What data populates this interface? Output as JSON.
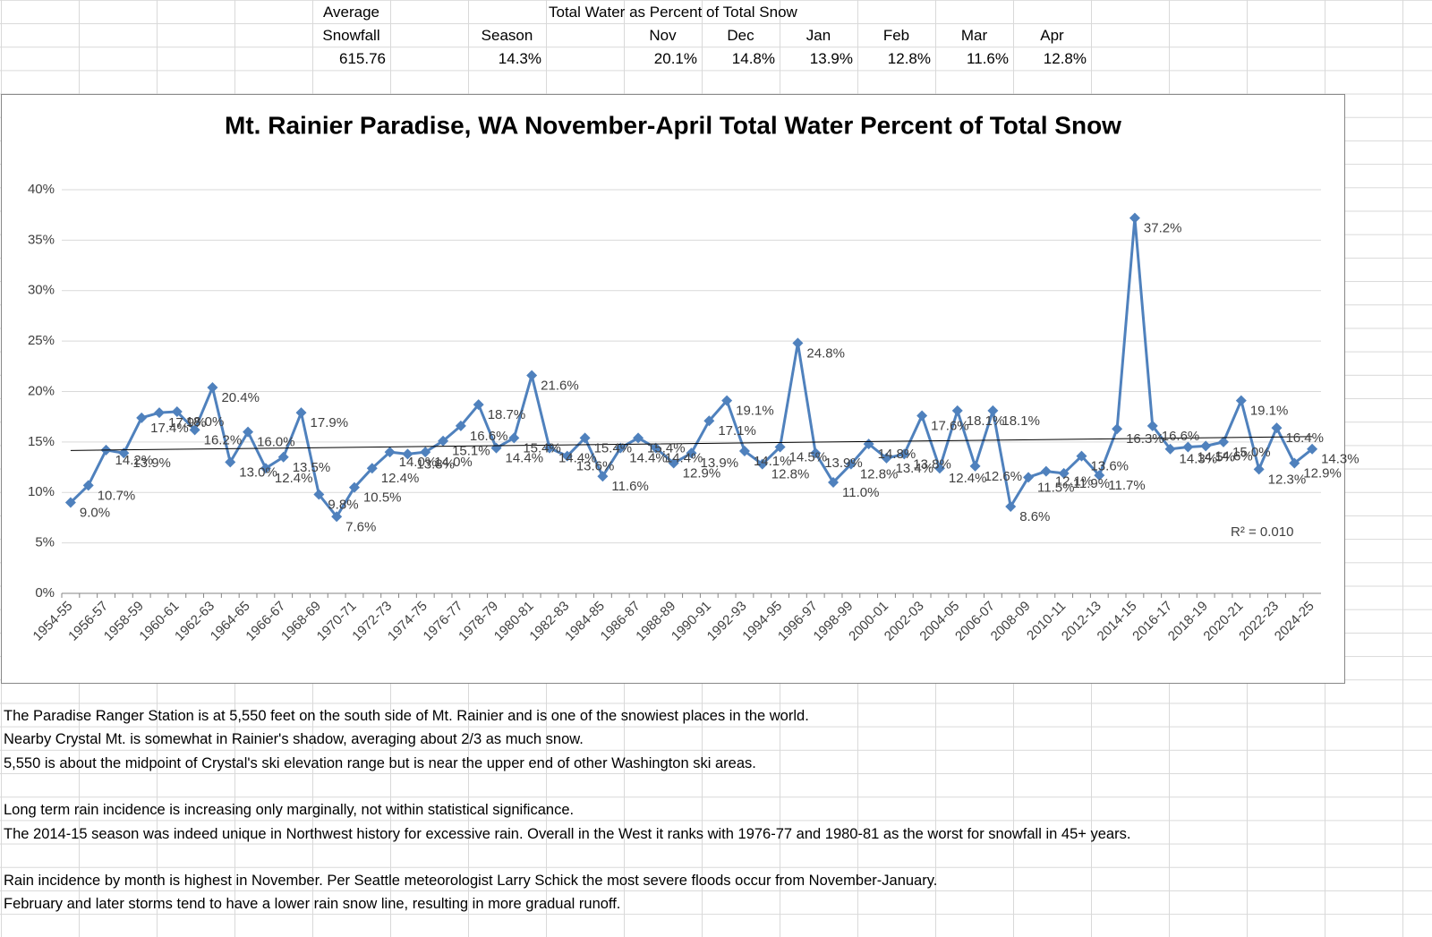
{
  "summary": {
    "average_label": "Average",
    "snowfall_label": "Snowfall",
    "average_snowfall": "615.76",
    "caption": "Total Water as Percent of Total Snow",
    "columns": [
      "Season",
      "Nov",
      "Dec",
      "Jan",
      "Feb",
      "Mar",
      "Apr"
    ],
    "values": [
      "14.3%",
      "20.1%",
      "14.8%",
      "13.9%",
      "12.8%",
      "11.6%",
      "12.8%"
    ]
  },
  "chart_data": {
    "type": "line",
    "title": "Mt. Rainier Paradise, WA November-April Total Water Percent of Total Snow",
    "categories": [
      "1954-55",
      null,
      "1956-57",
      null,
      "1958-59",
      null,
      "1960-61",
      null,
      "1962-63",
      null,
      "1964-65",
      null,
      "1966-67",
      null,
      "1968-69",
      null,
      "1970-71",
      null,
      "1972-73",
      null,
      "1974-75",
      null,
      "1976-77",
      null,
      "1978-79",
      null,
      "1980-81",
      null,
      "1982-83",
      null,
      "1984-85",
      null,
      "1986-87",
      null,
      "1988-89",
      null,
      "1990-91",
      null,
      "1992-93",
      null,
      "1994-95",
      null,
      "1996-97",
      null,
      "1998-99",
      null,
      "2000-01",
      null,
      "2002-03",
      null,
      "2004-05",
      null,
      "2006-07",
      null,
      "2008-09",
      null,
      "2010-11",
      null,
      "2012-13",
      null,
      "2014-15",
      null,
      "2016-17",
      null,
      "2018-19",
      null,
      "2020-21",
      null,
      "2022-23",
      null,
      "2024-25"
    ],
    "series": [
      {
        "name": "Total Water Percent",
        "color": "#4f81bd",
        "values": [
          9.0,
          10.7,
          14.2,
          13.9,
          17.4,
          17.9,
          18.0,
          16.2,
          20.4,
          13.0,
          16.0,
          12.4,
          13.5,
          17.9,
          9.8,
          7.6,
          10.5,
          12.4,
          14.0,
          13.8,
          14.0,
          15.1,
          16.6,
          18.7,
          14.4,
          15.4,
          21.6,
          14.4,
          13.6,
          15.4,
          11.6,
          14.4,
          15.4,
          14.4,
          12.9,
          13.9,
          17.1,
          19.1,
          14.1,
          12.8,
          14.5,
          24.8,
          13.9,
          11.0,
          12.8,
          14.8,
          13.4,
          13.8,
          17.6,
          12.4,
          18.1,
          12.6,
          18.1,
          8.6,
          11.5,
          12.1,
          11.9,
          13.6,
          11.7,
          16.3,
          37.2,
          16.6,
          14.3,
          14.5,
          14.6,
          15.0,
          19.1,
          12.3,
          16.4,
          12.9,
          14.3
        ],
        "value_labels": [
          "9.0%",
          "10.7%",
          "14.2%",
          "13.9%",
          "17.4%",
          "17.9%",
          "18.0%",
          "16.2%",
          "20.4%",
          "13.0%",
          "16.0%",
          "12.4%",
          "13.5%",
          "17.9%",
          "9.8%",
          "7.6%",
          "10.5%",
          "12.4%",
          "14.0%",
          "13.8%",
          "14.0%",
          "15.1%",
          "16.6%",
          "18.7%",
          "14.4%",
          "15.4%",
          "21.6%",
          "14.4%",
          "13.6%",
          "15.4%",
          "11.6%",
          "14.4%",
          "15.4%",
          "14.4%",
          "12.9%",
          "13.9%",
          "17.1%",
          "19.1%",
          "14.1%",
          "12.8%",
          "14.5%",
          "24.8%",
          "13.9%",
          "11.0%",
          "12.8%",
          "14.8%",
          "13.4%",
          "13.8%",
          "17.6%",
          "12.4%",
          "18.1%",
          "12.6%",
          "18.1%",
          "8.6%",
          "11.5%",
          "12.1%",
          "11.9%",
          "13.6%",
          "11.7%",
          "16.3%",
          "37.2%",
          "16.6%",
          "14.3%",
          "14.5%",
          "14.6%",
          "15.0%",
          "19.1%",
          "12.3%",
          "16.4%",
          "12.9%",
          "14.3%"
        ]
      }
    ],
    "ylim": [
      0,
      40
    ],
    "yticks": [
      {
        "value": 0,
        "label": "0%"
      },
      {
        "value": 5,
        "label": "5%"
      },
      {
        "value": 10,
        "label": "10%"
      },
      {
        "value": 15,
        "label": "15%"
      },
      {
        "value": 20,
        "label": "20%"
      },
      {
        "value": 25,
        "label": "25%"
      },
      {
        "value": 30,
        "label": "30%"
      },
      {
        "value": 35,
        "label": "35%"
      },
      {
        "value": 40,
        "label": "40%"
      }
    ],
    "grid": true,
    "trendline": "linear",
    "trendline_label": "R² = 0.010"
  },
  "notes": [
    "The Paradise Ranger Station is at 5,550 feet on the south side of Mt. Rainier and is one of the snowiest places in the world.",
    "Nearby Crystal Mt. is somewhat in Rainier's shadow, averaging about 2/3 as much snow.",
    "5,550 is about the midpoint of Crystal's ski elevation range but is near the upper end of other Washington ski areas.",
    "Long term rain incidence is increasing only marginally, not within statistical significance.",
    "The 2014-15 season was indeed unique in Northwest history for excessive rain.   Overall in the West it ranks with 1976-77 and 1980-81 as the worst for snowfall in 45+ years.",
    "Rain incidence by month is highest in November.   Per Seattle meteorologist Larry Schick the most severe floods occur from November-January.",
    "February and later storms tend to have a lower rain snow line, resulting in more gradual runoff."
  ]
}
